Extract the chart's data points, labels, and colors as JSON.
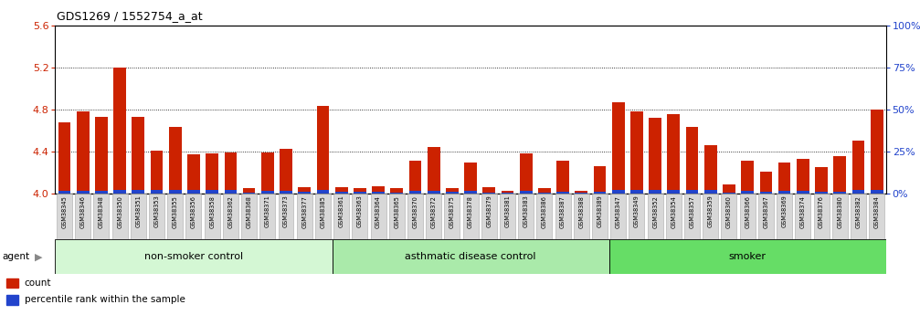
{
  "title": "GDS1269 / 1552754_a_at",
  "samples": [
    "GSM38345",
    "GSM38346",
    "GSM38348",
    "GSM38350",
    "GSM38351",
    "GSM38353",
    "GSM38355",
    "GSM38356",
    "GSM38358",
    "GSM38362",
    "GSM38368",
    "GSM38371",
    "GSM38373",
    "GSM38377",
    "GSM38385",
    "GSM38361",
    "GSM38363",
    "GSM38364",
    "GSM38365",
    "GSM38370",
    "GSM38372",
    "GSM38375",
    "GSM38378",
    "GSM38379",
    "GSM38381",
    "GSM38383",
    "GSM38386",
    "GSM38387",
    "GSM38388",
    "GSM38389",
    "GSM38347",
    "GSM38349",
    "GSM38352",
    "GSM38354",
    "GSM38357",
    "GSM38359",
    "GSM38360",
    "GSM38366",
    "GSM38367",
    "GSM38369",
    "GSM38374",
    "GSM38376",
    "GSM38380",
    "GSM38382",
    "GSM38384"
  ],
  "count_values": [
    4.68,
    4.78,
    4.73,
    5.2,
    4.73,
    4.41,
    4.63,
    4.37,
    4.38,
    4.39,
    4.05,
    4.39,
    4.43,
    4.06,
    4.83,
    4.06,
    4.05,
    4.07,
    4.05,
    4.31,
    4.44,
    4.05,
    4.3,
    4.06,
    4.03,
    4.38,
    4.05,
    4.31,
    4.03,
    4.26,
    4.87,
    4.78,
    4.72,
    4.76,
    4.63,
    4.46,
    4.09,
    4.31,
    4.21,
    4.3,
    4.33,
    4.25,
    4.36,
    4.5,
    4.8
  ],
  "percentile_values": [
    0.028,
    0.028,
    0.028,
    0.033,
    0.033,
    0.033,
    0.033,
    0.033,
    0.033,
    0.033,
    0.01,
    0.028,
    0.028,
    0.018,
    0.033,
    0.023,
    0.018,
    0.018,
    0.014,
    0.028,
    0.028,
    0.018,
    0.028,
    0.014,
    0.014,
    0.028,
    0.014,
    0.023,
    0.014,
    0.023,
    0.038,
    0.033,
    0.033,
    0.033,
    0.033,
    0.033,
    0.014,
    0.028,
    0.023,
    0.028,
    0.028,
    0.023,
    0.023,
    0.038,
    0.033
  ],
  "groups": [
    {
      "label": "non-smoker control",
      "start": 0,
      "end": 15,
      "color": "#d4f7d4"
    },
    {
      "label": "asthmatic disease control",
      "start": 15,
      "end": 30,
      "color": "#aaeaaa"
    },
    {
      "label": "smoker",
      "start": 30,
      "end": 45,
      "color": "#66dd66"
    }
  ],
  "ylim_left": [
    4.0,
    5.6
  ],
  "ylim_right": [
    0,
    100
  ],
  "yticks_left": [
    4.0,
    4.4,
    4.8,
    5.2,
    5.6
  ],
  "yticks_right": [
    0,
    25,
    50,
    75,
    100
  ],
  "bar_color_red": "#cc2200",
  "bar_color_blue": "#2244cc",
  "base_value": 4.0
}
